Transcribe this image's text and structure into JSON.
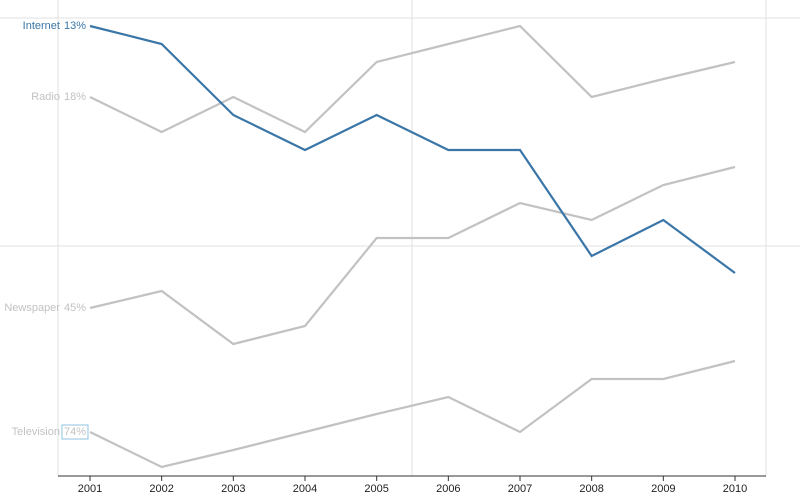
{
  "chart_data": {
    "type": "line",
    "categories": [
      "2001",
      "2002",
      "2003",
      "2004",
      "2005",
      "2006",
      "2007",
      "2008",
      "2009",
      "2010"
    ],
    "ylim": [
      476,
      0
    ],
    "series": [
      {
        "name": "Internet",
        "label": "13%",
        "color": "#3a76a7",
        "values": [
          26,
          44,
          115,
          150,
          115,
          150,
          150,
          256,
          220,
          273
        ]
      },
      {
        "name": "Radio",
        "label": "18%",
        "color": "#c2c2c2",
        "values": [
          97,
          132,
          97,
          132,
          62,
          44,
          26,
          97,
          79,
          62
        ]
      },
      {
        "name": "Newspaper",
        "label": "45%",
        "color": "#c2c2c2",
        "values": [
          308,
          291,
          344,
          326,
          238,
          238,
          203,
          220,
          185,
          167
        ]
      },
      {
        "name": "Television",
        "label": "74%",
        "color": "#c2c2c2",
        "values": [
          432,
          467,
          450,
          432,
          414,
          397,
          432,
          379,
          379,
          361
        ]
      }
    ]
  }
}
